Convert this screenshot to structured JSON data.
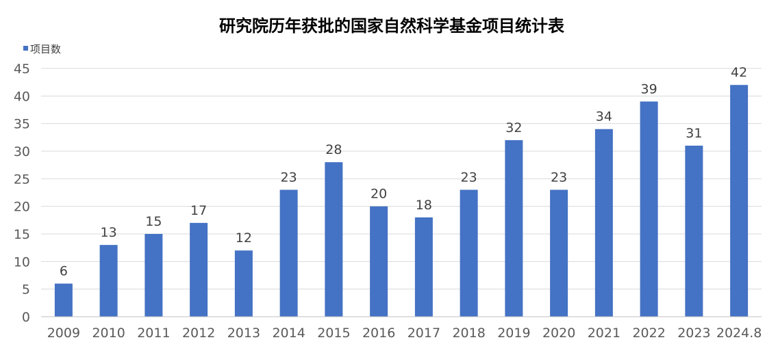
{
  "chart_data": {
    "type": "bar",
    "title": "研究院历年获批的国家自然科学基金项目统计表",
    "xlabel": "",
    "ylabel": "",
    "categories": [
      "2009",
      "2010",
      "2011",
      "2012",
      "2013",
      "2014",
      "2015",
      "2016",
      "2017",
      "2018",
      "2019",
      "2020",
      "2021",
      "2022",
      "2023",
      "2024.8"
    ],
    "series": [
      {
        "name": "项目数",
        "values": [
          6,
          13,
          15,
          17,
          12,
          23,
          28,
          20,
          18,
          23,
          32,
          23,
          34,
          39,
          31,
          42
        ]
      }
    ],
    "ylim": [
      0,
      45
    ],
    "yticks": [
      0,
      5,
      10,
      15,
      20,
      25,
      30,
      35,
      40,
      45
    ],
    "grid": true,
    "legend_position": "top-left",
    "data_labels": true,
    "bar_color": "#4472c4"
  }
}
